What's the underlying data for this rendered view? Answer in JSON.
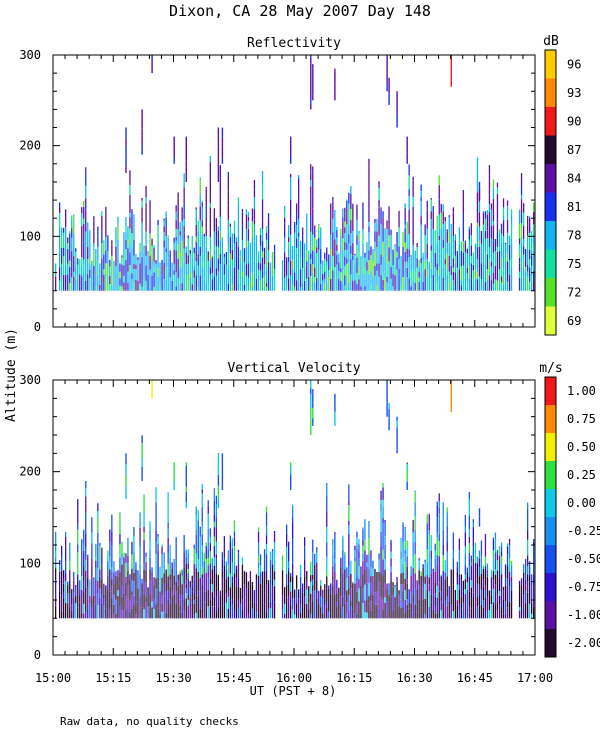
{
  "page_title": "Dixon, CA 28 May 2007  Day 148",
  "footnote": "Raw data, no quality checks",
  "chart_data": [
    {
      "type": "heatmap",
      "title": "Reflectivity",
      "ylabel": "Altitude (m)",
      "xlabel": "UT  (PST + 8)",
      "x_ticklabels": [
        "15:00",
        "15:15",
        "15:30",
        "15:45",
        "16:00",
        "16:15",
        "16:30",
        "16:45",
        "17:00"
      ],
      "xlim_minutes": [
        0,
        120
      ],
      "y_ticks": [
        0,
        100,
        200,
        300
      ],
      "ylim": [
        0,
        300
      ],
      "colorbar": {
        "unit": "dB",
        "labels": [
          "69",
          "72",
          "75",
          "78",
          "81",
          "84",
          "87",
          "90",
          "93",
          "96"
        ]
      },
      "colors": [
        "#e0ff3a",
        "#56e02a",
        "#12e0a0",
        "#10b4f0",
        "#1830f0",
        "#5a10a0",
        "#250a30",
        "#f01818",
        "#ff8800",
        "#ffcc00"
      ],
      "data_summary": "Echoes mostly between 40 and 140 m throughout period, scattered columns up to about 300 m"
    },
    {
      "type": "heatmap",
      "title": "Vertical Velocity",
      "ylabel": "Altitude (m)",
      "xlabel": "UT  (PST + 8)",
      "x_ticklabels": [
        "15:00",
        "15:15",
        "15:30",
        "15:45",
        "16:00",
        "16:15",
        "16:30",
        "16:45",
        "17:00"
      ],
      "xlim_minutes": [
        0,
        120
      ],
      "y_ticks": [
        0,
        100,
        200,
        300
      ],
      "ylim": [
        0,
        300
      ],
      "colorbar": {
        "unit": "m/s",
        "labels": [
          "-2.00",
          "-1.00",
          "-0.75",
          "-0.50",
          "-0.25",
          "0.00",
          "0.25",
          "0.50",
          "0.75",
          "1.00"
        ]
      },
      "colors": [
        "#250a30",
        "#5a10a0",
        "#3010d0",
        "#1850f0",
        "#1890f0",
        "#10c8e8",
        "#30e040",
        "#f0f000",
        "#ff8800",
        "#f01818"
      ],
      "data_summary": "Mostly downward velocities near -1 to -2 m/s below 100 m, scattered positive values aloft"
    }
  ],
  "shared_ylabel": "Altitude (m)"
}
